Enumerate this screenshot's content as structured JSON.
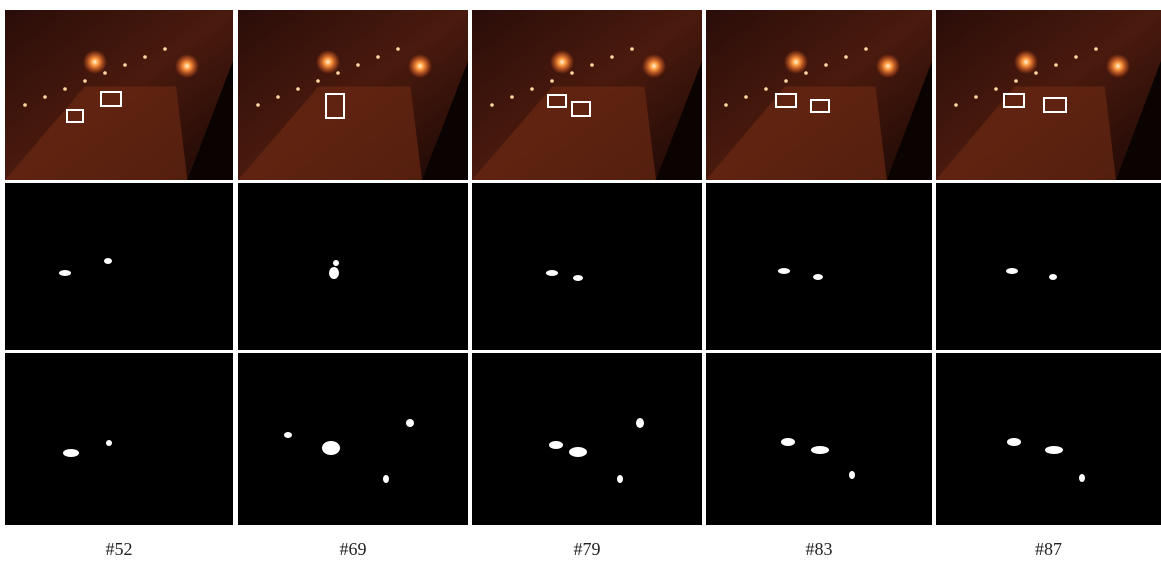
{
  "figure": {
    "columns": [
      {
        "label": "#52"
      },
      {
        "label": "#69"
      },
      {
        "label": "#79"
      },
      {
        "label": "#83"
      },
      {
        "label": "#87"
      }
    ]
  }
}
